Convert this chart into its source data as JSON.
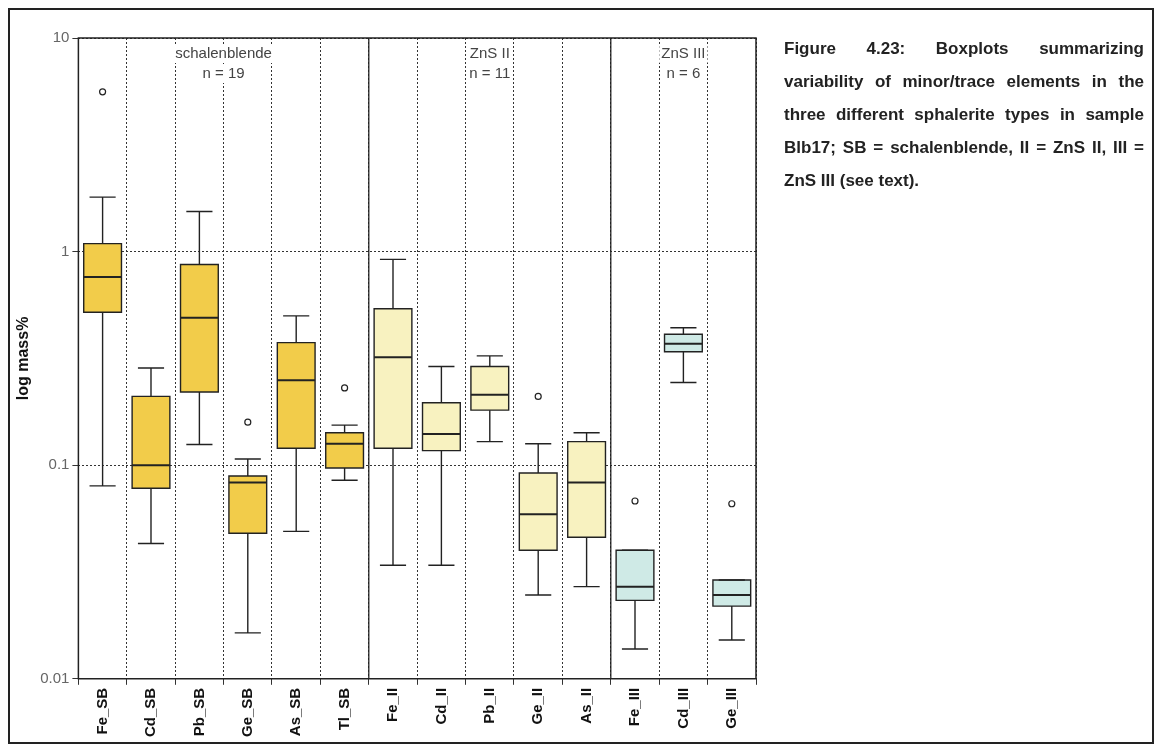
{
  "chart_data": {
    "type": "box",
    "ylabel": "log mass%",
    "categories": [
      "Fe_SB",
      "Cd_SB",
      "Pb_SB",
      "Ge_SB",
      "As_SB",
      "Tl_SB",
      "Fe_II",
      "Cd_II",
      "Pb_II",
      "Ge_II",
      "As_II",
      "Fe_III",
      "Cd_III",
      "Ge_III"
    ],
    "colors": [
      "#f2cc4a",
      "#f2cc4a",
      "#f2cc4a",
      "#f2cc4a",
      "#f2cc4a",
      "#f2cc4a",
      "#f8f2c0",
      "#f8f2c0",
      "#f8f2c0",
      "#f8f2c0",
      "#f8f2c0",
      "#cfeae6",
      "#cfeae6",
      "#cfeae6"
    ],
    "boxes": [
      {
        "low": 0.08,
        "q1": 0.52,
        "median": 0.76,
        "q3": 1.09,
        "high": 1.8,
        "outliers": [
          5.6
        ]
      },
      {
        "low": 0.043,
        "q1": 0.078,
        "median": 0.1,
        "q3": 0.21,
        "high": 0.285
      },
      {
        "low": 0.125,
        "q1": 0.22,
        "median": 0.49,
        "q3": 0.87,
        "high": 1.54
      },
      {
        "low": 0.0164,
        "q1": 0.048,
        "median": 0.083,
        "q3": 0.089,
        "high": 0.107,
        "outliers": [
          0.159
        ]
      },
      {
        "low": 0.049,
        "q1": 0.12,
        "median": 0.25,
        "q3": 0.375,
        "high": 0.5
      },
      {
        "low": 0.085,
        "q1": 0.097,
        "median": 0.126,
        "q3": 0.142,
        "high": 0.154,
        "outliers": [
          0.23
        ]
      },
      {
        "low": 0.034,
        "q1": 0.12,
        "median": 0.32,
        "q3": 0.54,
        "high": 0.92
      },
      {
        "low": 0.034,
        "q1": 0.117,
        "median": 0.14,
        "q3": 0.196,
        "high": 0.29
      },
      {
        "low": 0.129,
        "q1": 0.181,
        "median": 0.214,
        "q3": 0.29,
        "high": 0.325
      },
      {
        "low": 0.0247,
        "q1": 0.04,
        "median": 0.059,
        "q3": 0.092,
        "high": 0.126,
        "outliers": [
          0.21
        ]
      },
      {
        "low": 0.027,
        "q1": 0.046,
        "median": 0.083,
        "q3": 0.129,
        "high": 0.142
      },
      {
        "low": 0.0138,
        "q1": 0.0233,
        "median": 0.027,
        "q3": 0.04,
        "high": 0.04,
        "outliers": [
          0.068
        ]
      },
      {
        "low": 0.244,
        "q1": 0.34,
        "median": 0.37,
        "q3": 0.41,
        "high": 0.44
      },
      {
        "low": 0.0152,
        "q1": 0.0219,
        "median": 0.0247,
        "q3": 0.029,
        "high": 0.029,
        "outliers": [
          0.066
        ]
      }
    ],
    "log": true,
    "ylim": [
      0.01,
      10
    ],
    "yticks": [
      0.01,
      0.1,
      1,
      10
    ],
    "grid": true,
    "legend": false,
    "annotations": [
      "schalenblende\nn = 19",
      "ZnS II\nn = 11",
      "ZnS III\nn = 6",
      "Figure 4.23: Boxplots summarizing variability of minor/trace elements in the three different sphalerite types in sample Blb17; SB = schalenblende, II = ZnS II, III = ZnS III (see text)."
    ]
  }
}
